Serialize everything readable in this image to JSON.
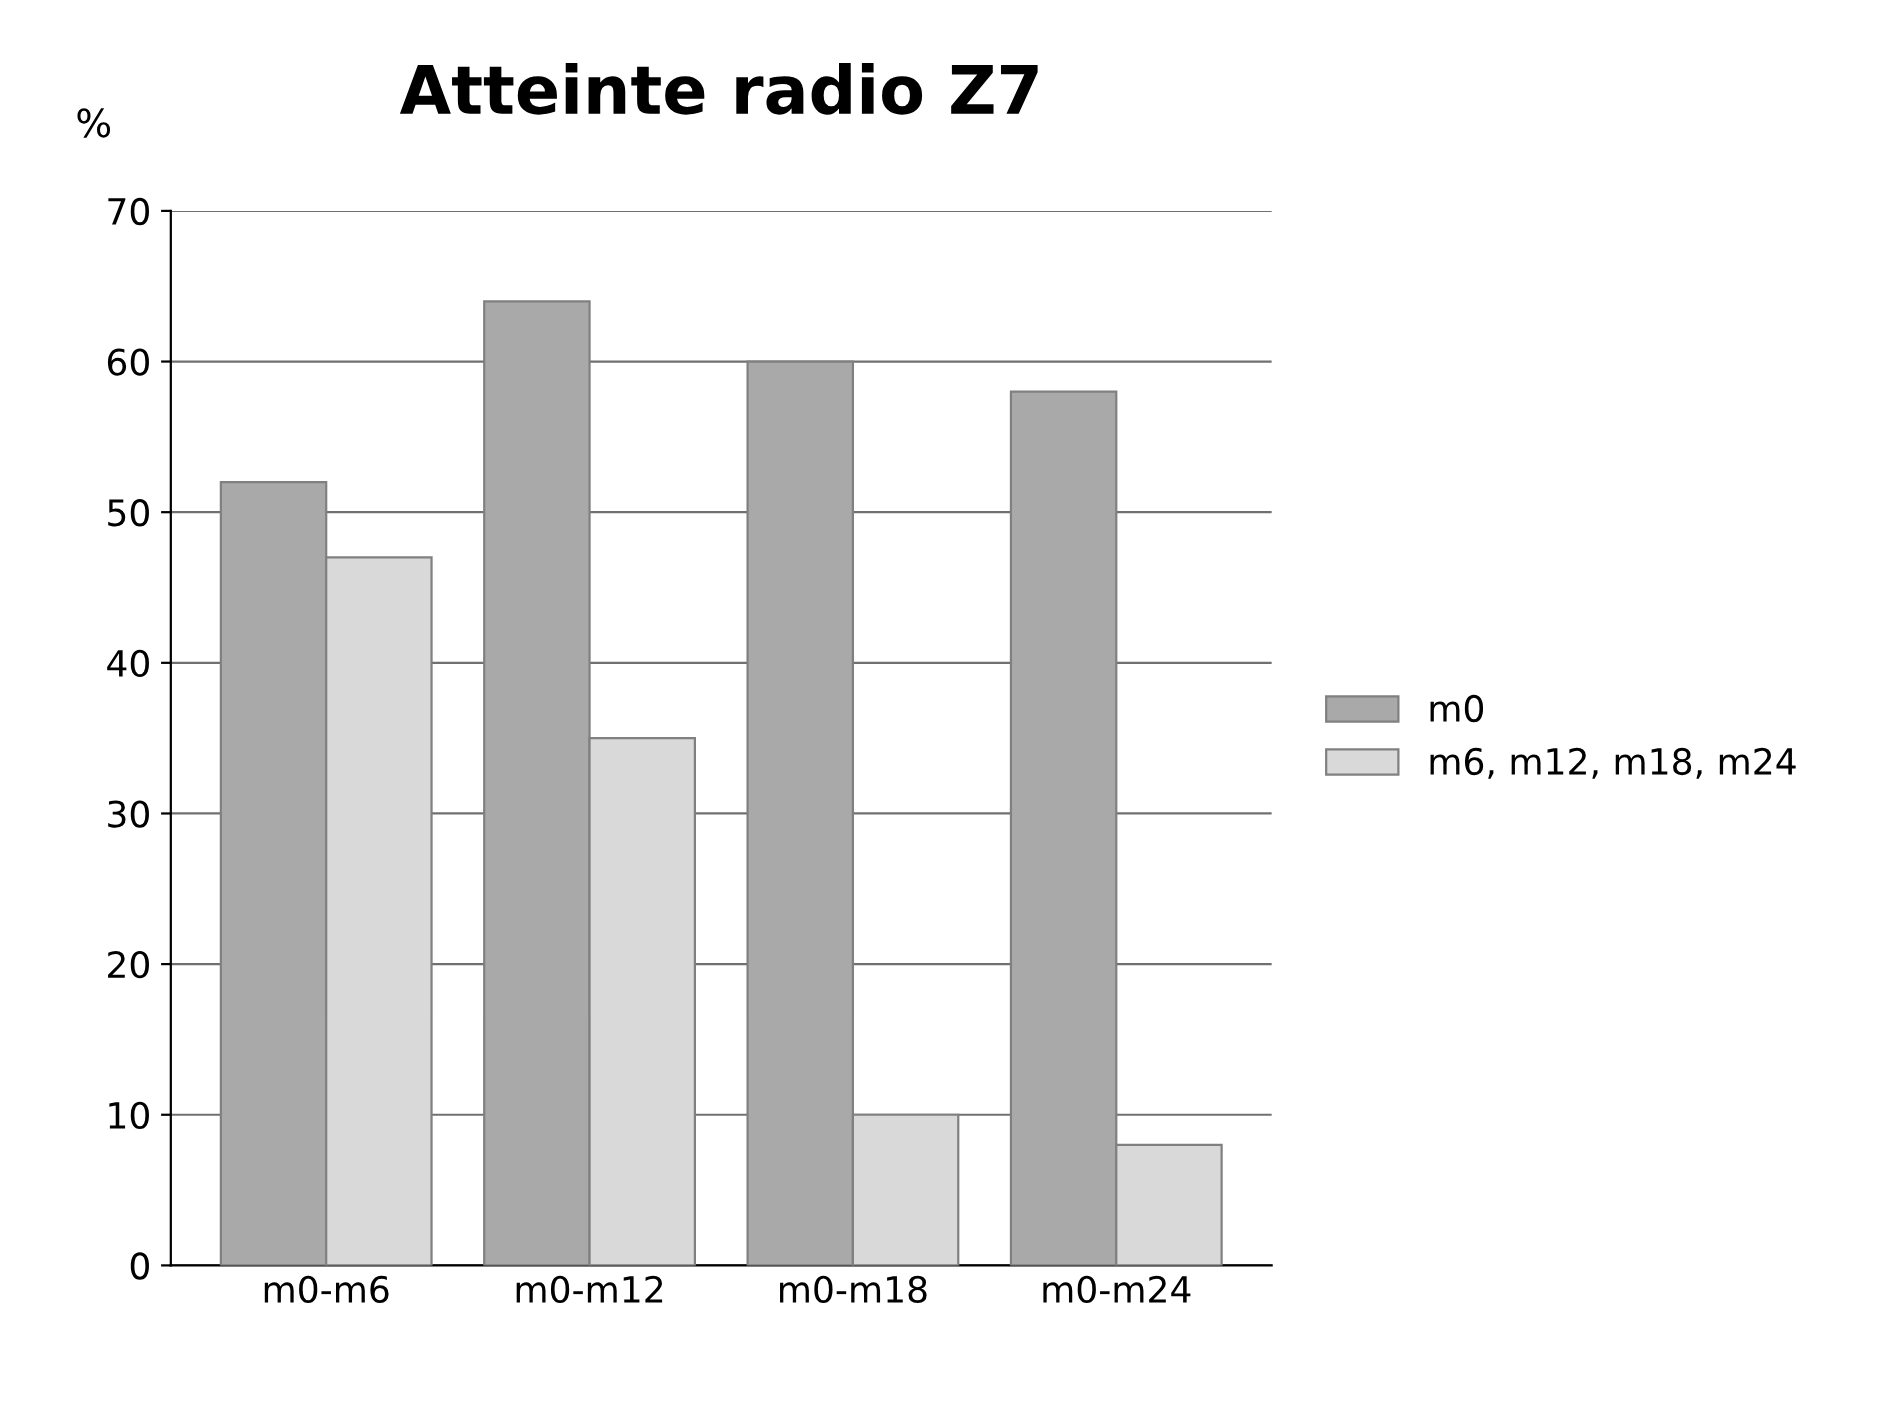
{
  "chart_data": {
    "type": "bar",
    "title": "Atteinte radio Z7",
    "ylabel": "%",
    "categories": [
      "m0-m6",
      "m0-m12",
      "m0-m18",
      "m0-m24"
    ],
    "series": [
      {
        "name": "m0",
        "color": "#a9a9a9",
        "values": [
          52,
          64,
          60,
          58
        ]
      },
      {
        "name": "m6, m12, m18, m24",
        "color": "#d9d9d9",
        "values": [
          47,
          35,
          10,
          8
        ]
      }
    ],
    "ylim": [
      0,
      70
    ],
    "yticks": [
      0,
      10,
      20,
      30,
      40,
      50,
      60,
      70
    ],
    "grid": "y",
    "legend": "right"
  }
}
